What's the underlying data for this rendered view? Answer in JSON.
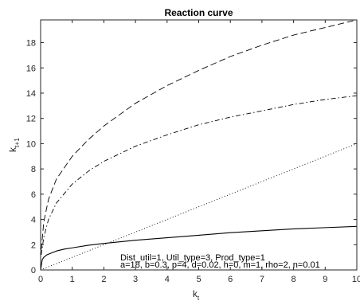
{
  "chart_data": {
    "type": "line",
    "title": "Reaction curve",
    "xlabel": {
      "base": "k",
      "subscript": "t"
    },
    "ylabel": {
      "base": "k",
      "subscript": "t+1"
    },
    "xlim": [
      0,
      10
    ],
    "ylim": [
      0,
      19.8
    ],
    "xticks": [
      0,
      1,
      2,
      3,
      4,
      5,
      6,
      7,
      8,
      9,
      10
    ],
    "yticks": [
      0,
      2,
      4,
      6,
      8,
      10,
      12,
      14,
      16,
      18
    ],
    "grid": false,
    "series": [
      {
        "style": "dashed",
        "color": "#000000",
        "x": [
          0.02,
          0.1,
          0.25,
          0.5,
          1,
          1.5,
          2,
          2.5,
          3,
          4,
          5,
          6,
          7,
          8,
          9,
          10
        ],
        "y": [
          1.6,
          3.8,
          5.6,
          7.2,
          9.0,
          10.3,
          11.4,
          12.3,
          13.2,
          14.6,
          15.8,
          16.9,
          17.8,
          18.6,
          19.2,
          19.8
        ]
      },
      {
        "style": "dashdot",
        "color": "#000000",
        "x": [
          0.02,
          0.1,
          0.25,
          0.5,
          1,
          1.5,
          2,
          2.5,
          3,
          4,
          5,
          6,
          7,
          8,
          9,
          10
        ],
        "y": [
          1.2,
          2.6,
          4.0,
          5.3,
          6.8,
          7.8,
          8.6,
          9.2,
          9.8,
          10.7,
          11.5,
          12.1,
          12.6,
          13.1,
          13.5,
          13.8
        ]
      },
      {
        "style": "dotted",
        "color": "#000000",
        "x": [
          0,
          10
        ],
        "y": [
          0,
          10
        ]
      },
      {
        "style": "solid",
        "color": "#000000",
        "x": [
          0,
          0.05,
          0.1,
          0.2,
          0.3,
          0.5,
          0.75,
          1,
          1.5,
          2,
          3,
          4,
          5,
          6,
          7,
          8,
          9,
          10
        ],
        "y": [
          0,
          0.8,
          1.0,
          1.2,
          1.3,
          1.5,
          1.65,
          1.75,
          1.95,
          2.1,
          2.35,
          2.55,
          2.75,
          2.95,
          3.1,
          3.25,
          3.35,
          3.45
        ]
      }
    ],
    "annotations": [
      "Dist_util=1, Util_type=3, Prod_type=1",
      "a=18, b=0.3, p=4, d=0.02, h=0, m=1, rho=2, n=0.01"
    ]
  }
}
